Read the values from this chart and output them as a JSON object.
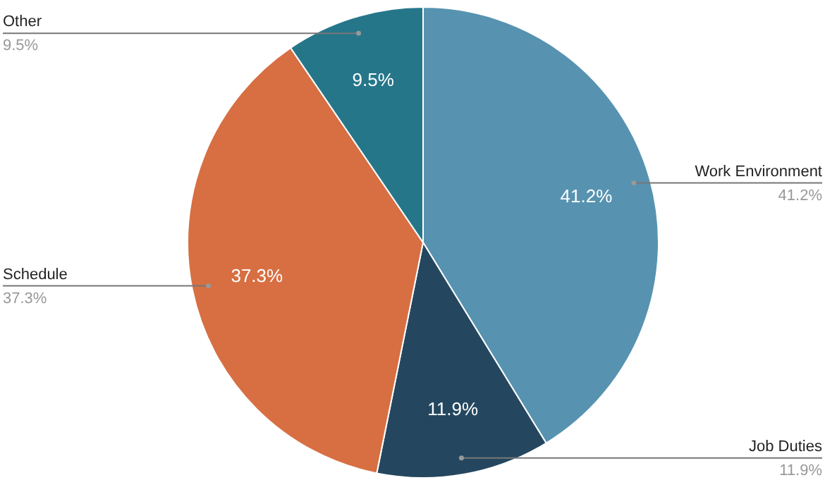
{
  "chart_data": {
    "type": "pie",
    "categories": [
      "Work Environment",
      "Job Duties",
      "Schedule",
      "Other"
    ],
    "values": [
      41.2,
      11.9,
      37.3,
      9.5
    ],
    "colors": [
      "#5793b0",
      "#24475f",
      "#d76f42",
      "#26768a"
    ],
    "value_labels": [
      "41.2%",
      "11.9%",
      "37.3%",
      "9.5%"
    ]
  }
}
